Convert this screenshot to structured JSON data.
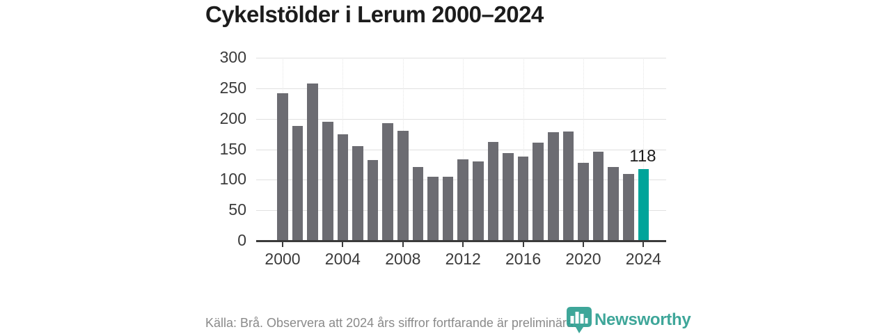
{
  "title": "Cykelstölder i Lerum 2000–2024",
  "colors": {
    "bar_default": "#6c6c72",
    "bar_highlight": "#00a49a",
    "axis": "#3b3b3b",
    "gridline": "#e0e0e0",
    "title_text": "#1c1c1c",
    "tick_label": "#3b3b3b",
    "value_label": "#1c1c1c",
    "footer_text": "#8a8a8a",
    "brand_teal": "#2a9d8f",
    "background": "#ffffff"
  },
  "chart_data": {
    "type": "bar",
    "title": "Cykelstölder i Lerum 2000–2024",
    "x": [
      2000,
      2001,
      2002,
      2003,
      2004,
      2005,
      2006,
      2007,
      2008,
      2009,
      2010,
      2011,
      2012,
      2013,
      2014,
      2015,
      2016,
      2017,
      2018,
      2019,
      2020,
      2021,
      2022,
      2023,
      2024
    ],
    "values": [
      242,
      188,
      258,
      195,
      175,
      155,
      132,
      193,
      180,
      121,
      105,
      105,
      134,
      130,
      162,
      144,
      138,
      161,
      178,
      179,
      128,
      146,
      121,
      109,
      118
    ],
    "highlight_index": 24,
    "highlight_label": "118",
    "x_tick_labels": [
      "2000",
      "2004",
      "2008",
      "2012",
      "2016",
      "2020",
      "2024"
    ],
    "y_ticks": [
      0,
      50,
      100,
      150,
      200,
      250,
      300
    ],
    "ylim": [
      0,
      300
    ],
    "xlabel": "",
    "ylabel": "",
    "grid": "horizontal",
    "legend": "none"
  },
  "footer": {
    "source_text": "Källa: Brå. Observera att 2024 års siffror fortfarande är preliminära.",
    "brand": "Newsworthy"
  }
}
